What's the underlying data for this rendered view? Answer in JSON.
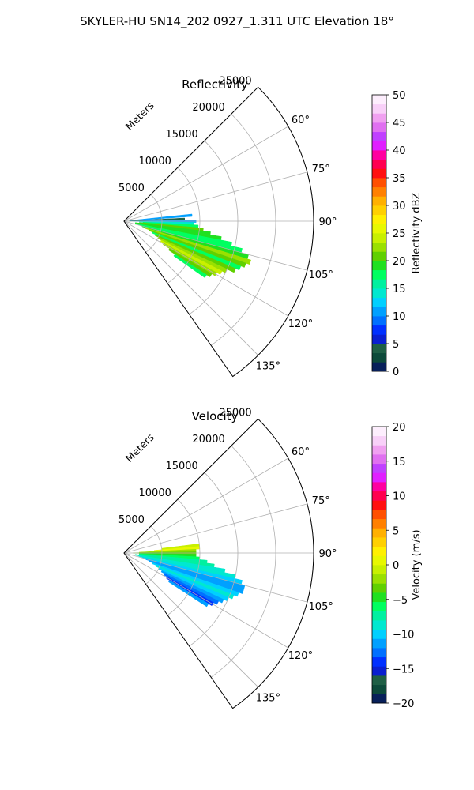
{
  "figure_title": "SKYLER-HU  SN14_202  0927_1.311 UTC Elevation 18°",
  "chart_data": [
    {
      "type": "heatmap",
      "subtype": "polar-sector",
      "title": "Reflectivity",
      "radial_label": "Meters",
      "radial_ticks": [
        5000,
        10000,
        15000,
        20000,
        25000
      ],
      "radial_tick_labels": [
        "5000",
        "10000",
        "15000",
        "20000",
        "25000"
      ],
      "rlim": [
        0,
        25000
      ],
      "theta_ticks_deg": [
        60,
        75,
        90,
        105,
        120,
        135
      ],
      "theta_tick_labels": [
        "60°",
        "75°",
        "90°",
        "105°",
        "120°",
        "135°"
      ],
      "theta_range_deg": [
        45,
        145
      ],
      "grid": true,
      "colorbar": {
        "label": "Reflectivity dBZ",
        "range": [
          0,
          50
        ],
        "ticks": [
          0,
          5,
          10,
          15,
          20,
          25,
          30,
          35,
          40,
          45,
          50
        ],
        "tick_labels": [
          "0",
          "5",
          "10",
          "15",
          "20",
          "25",
          "30",
          "35",
          "40",
          "45",
          "50"
        ]
      },
      "colors": [
        "#08205a",
        "#0d4a3a",
        "#1f5f45",
        "#0a1fd0",
        "#0030ff",
        "#0070ff",
        "#00a0ff",
        "#00d0ff",
        "#00e8d0",
        "#00f0a0",
        "#00ff60",
        "#20e020",
        "#60d000",
        "#9ae000",
        "#c8f000",
        "#e8f800",
        "#fff000",
        "#ffd000",
        "#ffb000",
        "#ff8000",
        "#ff5000",
        "#ff1010",
        "#ff0050",
        "#ff00a0",
        "#e020ff",
        "#c040ff",
        "#e070f0",
        "#f0a0f0",
        "#f8d0f8",
        "#fdeefd"
      ],
      "cells": [
        {
          "az": 85,
          "r": [
            800,
            9000
          ],
          "v": 10
        },
        {
          "az": 88,
          "r": [
            600,
            8000
          ],
          "v": 4
        },
        {
          "az": 90,
          "r": [
            1200,
            9500
          ],
          "v": 11
        },
        {
          "az": 92,
          "r": [
            2000,
            9200
          ],
          "v": 14
        },
        {
          "az": 94,
          "r": [
            2500,
            9800
          ],
          "v": 18
        },
        {
          "az": 96,
          "r": [
            2000,
            10500
          ],
          "v": 20
        },
        {
          "az": 98,
          "r": [
            1500,
            11500
          ],
          "v": 19
        },
        {
          "az": 100,
          "r": [
            1500,
            13000
          ],
          "v": 19
        },
        {
          "az": 102,
          "r": [
            1500,
            14500
          ],
          "v": 17
        },
        {
          "az": 104,
          "r": [
            2000,
            16000
          ],
          "v": 17
        },
        {
          "az": 106,
          "r": [
            2500,
            17000
          ],
          "v": 19
        },
        {
          "az": 108,
          "r": [
            3000,
            17500
          ],
          "v": 22
        },
        {
          "az": 110,
          "r": [
            3500,
            17000
          ],
          "v": 20
        },
        {
          "az": 112,
          "r": [
            4000,
            16500
          ],
          "v": 18
        },
        {
          "az": 114,
          "r": [
            4500,
            16000
          ],
          "v": 20
        },
        {
          "az": 116,
          "r": [
            5000,
            15000
          ],
          "v": 22
        },
        {
          "az": 118,
          "r": [
            5500,
            14500
          ],
          "v": 24
        },
        {
          "az": 120,
          "r": [
            6000,
            14000
          ],
          "v": 23
        },
        {
          "az": 122,
          "r": [
            7000,
            13500
          ],
          "v": 21
        },
        {
          "az": 124,
          "r": [
            8000,
            13000
          ],
          "v": 17
        }
      ]
    },
    {
      "type": "heatmap",
      "subtype": "polar-sector",
      "title": "Velocity",
      "radial_label": "Meters",
      "radial_ticks": [
        5000,
        10000,
        15000,
        20000,
        25000
      ],
      "radial_tick_labels": [
        "5000",
        "10000",
        "15000",
        "20000",
        "25000"
      ],
      "rlim": [
        0,
        25000
      ],
      "theta_ticks_deg": [
        60,
        75,
        90,
        105,
        120,
        135
      ],
      "theta_tick_labels": [
        "60°",
        "75°",
        "90°",
        "105°",
        "120°",
        "135°"
      ],
      "theta_range_deg": [
        45,
        145
      ],
      "grid": true,
      "colorbar": {
        "label": "Velocity (m/s)",
        "range": [
          -20,
          20
        ],
        "ticks": [
          -20,
          -15,
          -10,
          -5,
          0,
          5,
          10,
          15,
          20
        ],
        "tick_labels": [
          "−20",
          "−15",
          "−10",
          "−5",
          "0",
          "5",
          "10",
          "15",
          "20"
        ]
      },
      "colors": [
        "#08205a",
        "#0d4a3a",
        "#1f5f45",
        "#0a1fd0",
        "#0030ff",
        "#0070ff",
        "#00a0ff",
        "#00d0ff",
        "#00e8d0",
        "#00f0a0",
        "#00ff60",
        "#20e020",
        "#60d000",
        "#9ae000",
        "#c8f000",
        "#e8f800",
        "#fff000",
        "#ffd000",
        "#ffb000",
        "#ff8000",
        "#ff5000",
        "#ff1010",
        "#ff0050",
        "#ff00a0",
        "#e020ff",
        "#c040ff",
        "#e070f0",
        "#f0a0f0",
        "#f8d0f8",
        "#fdeefd"
      ],
      "cells": [
        {
          "az": 84,
          "r": [
            5000,
            10000
          ],
          "v": -1
        },
        {
          "az": 86,
          "r": [
            4000,
            10000
          ],
          "v": 0
        },
        {
          "az": 88,
          "r": [
            2000,
            9500
          ],
          "v": -2
        },
        {
          "az": 90,
          "r": [
            1200,
            9500
          ],
          "v": -4
        },
        {
          "az": 92,
          "r": [
            2000,
            9500
          ],
          "v": -5
        },
        {
          "az": 94,
          "r": [
            2000,
            10000
          ],
          "v": -6
        },
        {
          "az": 96,
          "r": [
            2000,
            11000
          ],
          "v": -7
        },
        {
          "az": 98,
          "r": [
            1500,
            12000
          ],
          "v": -8
        },
        {
          "az": 100,
          "r": [
            1500,
            13500
          ],
          "v": -9
        },
        {
          "az": 102,
          "r": [
            2000,
            15000
          ],
          "v": -9
        },
        {
          "az": 104,
          "r": [
            2500,
            16000
          ],
          "v": -10
        },
        {
          "az": 106,
          "r": [
            3000,
            16500
          ],
          "v": -11
        },
        {
          "az": 108,
          "r": [
            3500,
            16500
          ],
          "v": -11
        },
        {
          "az": 110,
          "r": [
            4000,
            16000
          ],
          "v": -10
        },
        {
          "az": 112,
          "r": [
            4500,
            15500
          ],
          "v": -9
        },
        {
          "az": 114,
          "r": [
            5000,
            15000
          ],
          "v": -10
        },
        {
          "az": 116,
          "r": [
            5500,
            14500
          ],
          "v": -12
        },
        {
          "az": 118,
          "r": [
            6000,
            14000
          ],
          "v": -13
        },
        {
          "az": 120,
          "r": [
            6500,
            13500
          ],
          "v": -14
        },
        {
          "az": 122,
          "r": [
            7000,
            13000
          ],
          "v": -12
        }
      ]
    }
  ]
}
